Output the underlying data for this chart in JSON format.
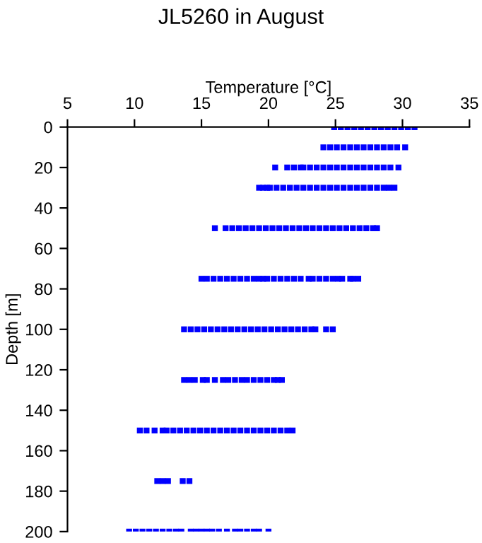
{
  "chart_data": {
    "type": "scatter",
    "title": "JL5260 in August",
    "xlabel": "Temperature [°C]",
    "ylabel": "Depth [m]",
    "xlim": [
      5,
      35
    ],
    "xticks": [
      5,
      10,
      15,
      20,
      25,
      30,
      35
    ],
    "ylim": [
      200,
      0
    ],
    "yticks": [
      0,
      20,
      40,
      60,
      80,
      100,
      120,
      140,
      160,
      180,
      200
    ],
    "marker": "square",
    "series": [
      {
        "color": "#0000ff",
        "x": [
          24.9,
          25.4,
          25.9,
          26.4,
          26.9,
          27.4,
          27.9,
          28.4,
          28.9,
          29.4,
          29.9,
          30.4,
          30.9
        ],
        "values": [
          0,
          0,
          0,
          0,
          0,
          0,
          0,
          0,
          0,
          0,
          0,
          0,
          0
        ]
      },
      {
        "color": "#0000ff",
        "x": [
          24.1,
          24.6,
          25.1,
          25.6,
          26.1,
          26.6,
          27.1,
          27.6,
          28.1,
          28.6,
          29.1,
          29.6,
          30.2
        ],
        "values": [
          10,
          10,
          10,
          10,
          10,
          10,
          10,
          10,
          10,
          10,
          10,
          10,
          10
        ]
      },
      {
        "color": "#0000ff",
        "x": [
          20.5,
          21.4,
          21.9,
          22.4,
          22.6,
          23.1,
          23.6,
          24.1,
          24.6,
          25.1,
          25.6,
          26.1,
          26.6,
          27.1,
          27.6,
          28.1,
          28.6,
          29.1,
          29.7
        ],
        "values": [
          20,
          20,
          20,
          20,
          20,
          20,
          20,
          20,
          20,
          20,
          20,
          20,
          20,
          20,
          20,
          20,
          20,
          20,
          20
        ]
      },
      {
        "color": "#0000ff",
        "x": [
          19.3,
          19.6,
          19.9,
          20.1,
          20.6,
          21.1,
          21.6,
          22.1,
          22.6,
          23.1,
          23.6,
          24.1,
          24.6,
          25.1,
          25.6,
          26.1,
          26.6,
          27.1,
          27.6,
          28.1,
          28.6,
          29.0,
          29.4
        ],
        "values": [
          30,
          30,
          30,
          30,
          30,
          30,
          30,
          30,
          30,
          30,
          30,
          30,
          30,
          30,
          30,
          30,
          30,
          30,
          30,
          30,
          30,
          30,
          30
        ]
      },
      {
        "color": "#0000ff",
        "x": [
          16.0,
          16.8,
          17.3,
          17.8,
          18.3,
          18.8,
          19.3,
          19.8,
          20.3,
          20.8,
          21.3,
          21.8,
          22.3,
          22.8,
          23.3,
          23.8,
          24.3,
          24.8,
          25.3,
          25.8,
          26.3,
          26.8,
          27.3,
          27.8,
          28.1
        ],
        "values": [
          50,
          50,
          50,
          50,
          50,
          50,
          50,
          50,
          50,
          50,
          50,
          50,
          50,
          50,
          50,
          50,
          50,
          50,
          50,
          50,
          50,
          50,
          50,
          50,
          50
        ]
      },
      {
        "color": "#0000ff",
        "x": [
          15.0,
          15.4,
          15.9,
          16.4,
          16.9,
          17.4,
          17.9,
          18.4,
          18.9,
          19.3,
          19.6,
          19.9,
          20.4,
          20.9,
          21.4,
          21.9,
          22.4,
          23.0,
          23.3,
          23.8,
          24.3,
          24.8,
          25.2,
          25.5,
          26.1,
          26.3,
          26.7
        ],
        "values": [
          75,
          75,
          75,
          75,
          75,
          75,
          75,
          75,
          75,
          75,
          75,
          75,
          75,
          75,
          75,
          75,
          75,
          75,
          75,
          75,
          75,
          75,
          75,
          75,
          75,
          75,
          75
        ]
      },
      {
        "color": "#0000ff",
        "x": [
          13.7,
          14.2,
          14.7,
          15.2,
          15.7,
          16.2,
          16.7,
          17.2,
          17.7,
          18.2,
          18.7,
          19.2,
          19.7,
          20.2,
          20.7,
          21.2,
          21.7,
          22.2,
          22.7,
          23.2,
          23.5,
          24.3,
          24.8
        ],
        "values": [
          100,
          100,
          100,
          100,
          100,
          100,
          100,
          100,
          100,
          100,
          100,
          100,
          100,
          100,
          100,
          100,
          100,
          100,
          100,
          100,
          100,
          100,
          100
        ]
      },
      {
        "color": "#0000ff",
        "x": [
          13.7,
          14.1,
          14.5,
          15.1,
          15.4,
          16.0,
          16.6,
          17.0,
          17.5,
          18.0,
          18.4,
          18.9,
          19.4,
          19.9,
          20.4,
          20.7,
          21.0
        ],
        "values": [
          125,
          125,
          125,
          125,
          125,
          125,
          125,
          125,
          125,
          125,
          125,
          125,
          125,
          125,
          125,
          125,
          125
        ]
      },
      {
        "color": "#0000ff",
        "x": [
          10.4,
          10.9,
          11.5,
          12.1,
          12.4,
          12.9,
          13.4,
          13.9,
          14.4,
          14.9,
          15.4,
          15.9,
          16.4,
          16.9,
          17.4,
          17.9,
          18.4,
          18.9,
          19.4,
          19.9,
          20.4,
          20.9,
          21.4,
          21.8
        ],
        "values": [
          150,
          150,
          150,
          150,
          150,
          150,
          150,
          150,
          150,
          150,
          150,
          150,
          150,
          150,
          150,
          150,
          150,
          150,
          150,
          150,
          150,
          150,
          150,
          150
        ]
      },
      {
        "color": "#0000ff",
        "x": [
          11.7,
          12.1,
          12.5,
          13.6,
          14.1
        ],
        "values": [
          175,
          175,
          175,
          175,
          175
        ]
      },
      {
        "color": "#0000ff",
        "x": [
          9.6,
          10.1,
          10.6,
          11.1,
          11.6,
          12.1,
          12.6,
          13.1,
          13.5,
          14.2,
          14.6,
          15.0,
          15.4,
          15.8,
          16.3,
          16.9,
          17.5,
          17.9,
          18.4,
          18.9,
          19.3,
          20.0
        ],
        "values": [
          200,
          200,
          200,
          200,
          200,
          200,
          200,
          200,
          200,
          200,
          200,
          200,
          200,
          200,
          200,
          200,
          200,
          200,
          200,
          200,
          200,
          200
        ]
      }
    ]
  }
}
